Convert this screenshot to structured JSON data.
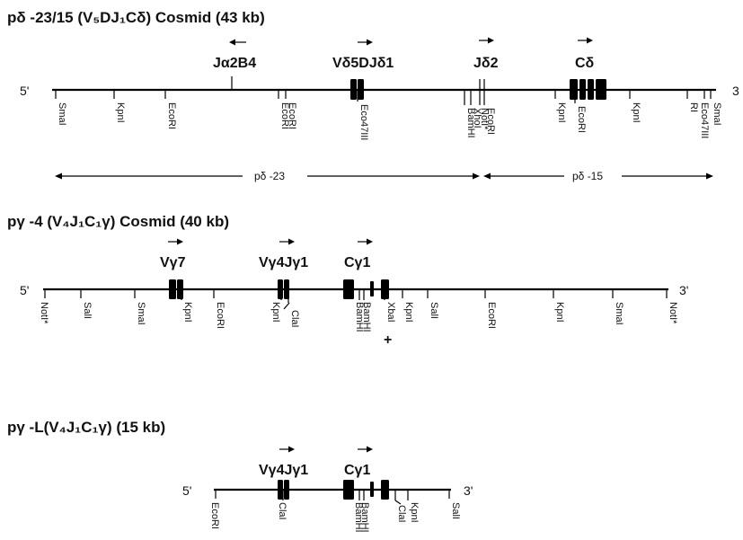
{
  "maps": [
    {
      "title": "pδ -23/15 (V₅DJ₁Cδ) Cosmid (43 kb)",
      "end5": "5'",
      "end3": "3",
      "genes": [
        {
          "label": "Jα2B4",
          "direction": "left"
        },
        {
          "label": "Vδ5DJδ1",
          "direction": "right"
        },
        {
          "label": "Jδ2",
          "direction": "right"
        },
        {
          "label": "Cδ",
          "direction": "right"
        }
      ],
      "sites": [
        "SmaI",
        "KpnI",
        "EcoRI",
        "EcoRI",
        "EcoRI",
        "Eco47III",
        "BamHI",
        "XhoI",
        "NotI*",
        "EcoRI",
        "KpnI",
        "EcoRI",
        "KpnI",
        "RI",
        "Eco47III",
        "SmaI"
      ],
      "subclones": [
        {
          "label": "pδ -23"
        },
        {
          "label": "pδ -15"
        }
      ]
    },
    {
      "title": "pγ -4 (V₄J₁C₁γ) Cosmid (40 kb)",
      "end5": "5'",
      "end3": "3'",
      "genes": [
        {
          "label": "Vγ7",
          "direction": "right"
        },
        {
          "label": "Vγ4Jγ1",
          "direction": "right"
        },
        {
          "label": "Cγ1",
          "direction": "right"
        }
      ],
      "sites": [
        "NotI*",
        "SalI",
        "SmaI",
        "KpnI",
        "EcoRI",
        "KpnI",
        "ClaI",
        "BamHI",
        "BamHI",
        "XbaI",
        "KpnI",
        "SalI",
        "EcoRI",
        "KpnI",
        "SmaI",
        "NotI*"
      ],
      "markers": [
        "+"
      ]
    },
    {
      "title": "pγ -L(V₄J₁C₁γ) (15 kb)",
      "end5": "5'",
      "end3": "3'",
      "genes": [
        {
          "label": "Vγ4Jγ1",
          "direction": "right"
        },
        {
          "label": "Cγ1",
          "direction": "right"
        }
      ],
      "sites": [
        "EcoRI",
        "ClaI",
        "BamHI",
        "BamHI",
        "ClaI",
        "KpnI",
        "SalI"
      ]
    }
  ]
}
